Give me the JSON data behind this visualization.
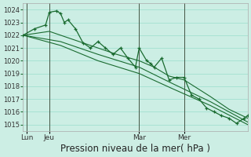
{
  "background_color": "#cceee4",
  "grid_color": "#99ddcc",
  "line_color": "#1a6b30",
  "xlabel": "Pression niveau de la mer( hPa )",
  "xlabel_fontsize": 8.5,
  "ylim": [
    1014.5,
    1024.5
  ],
  "yticks": [
    1015,
    1016,
    1017,
    1018,
    1019,
    1020,
    1021,
    1022,
    1023,
    1024
  ],
  "xlim": [
    0,
    120
  ],
  "day_labels": [
    "Lun",
    "Jeu",
    "Mar",
    "Mer"
  ],
  "day_positions": [
    2,
    14,
    62,
    86
  ],
  "series1_x": [
    0,
    6,
    12,
    14,
    18,
    20,
    22,
    24,
    28,
    32,
    36,
    40,
    44,
    48,
    52,
    56,
    60,
    62,
    66,
    68,
    70,
    74,
    78,
    82,
    86,
    90,
    94,
    98,
    102,
    106,
    110,
    114,
    118,
    120
  ],
  "series1_y": [
    1022.0,
    1022.5,
    1022.8,
    1023.8,
    1023.9,
    1023.7,
    1023.0,
    1023.2,
    1022.5,
    1021.4,
    1021.0,
    1021.5,
    1021.0,
    1020.5,
    1021.0,
    1020.2,
    1019.5,
    1021.0,
    1020.0,
    1019.8,
    1019.5,
    1020.2,
    1018.5,
    1018.7,
    1018.7,
    1017.3,
    1017.0,
    1016.3,
    1016.0,
    1015.7,
    1015.5,
    1015.1,
    1015.5,
    1015.7
  ],
  "series2_x": [
    0,
    14,
    30,
    50,
    62,
    70,
    78,
    86,
    100,
    110,
    120
  ],
  "series2_y": [
    1022.0,
    1022.3,
    1021.5,
    1020.5,
    1020.0,
    1019.5,
    1018.8,
    1018.5,
    1017.2,
    1016.2,
    1015.5
  ],
  "series3_x": [
    0,
    20,
    40,
    62,
    80,
    100,
    120
  ],
  "series3_y": [
    1022.0,
    1021.5,
    1020.5,
    1019.5,
    1018.2,
    1016.8,
    1015.2
  ],
  "series4_x": [
    0,
    20,
    40,
    62,
    80,
    100,
    120
  ],
  "series4_y": [
    1022.0,
    1021.2,
    1020.0,
    1019.0,
    1017.8,
    1016.5,
    1015.0
  ]
}
